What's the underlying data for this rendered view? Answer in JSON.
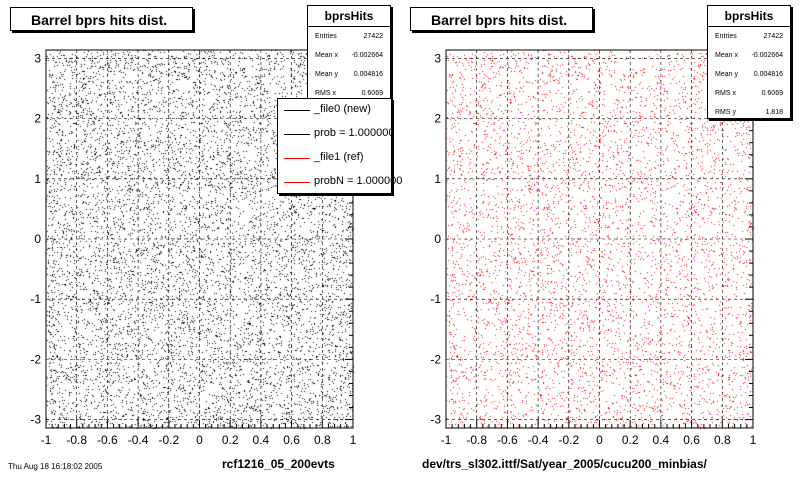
{
  "chart_data": [
    {
      "type": "scatter",
      "title": "Barrel bprs hits dist.",
      "xlim": [
        -1,
        1
      ],
      "ylim": [
        -3.14,
        3.14
      ],
      "x_ticks": [
        "-1",
        "-0.8",
        "-0.6",
        "-0.4",
        "-0.2",
        "0",
        "0.2",
        "0.4",
        "0.6",
        "0.8",
        "1"
      ],
      "y_ticks": [
        "-3",
        "-2",
        "-1",
        "0",
        "1",
        "2",
        "3"
      ],
      "grid": true,
      "point_color": "#000000",
      "distribution": "uniform",
      "stats": {
        "name": "bprsHits",
        "rows": [
          {
            "label": "Entries",
            "value": "27422"
          },
          {
            "label": "Mean x",
            "value": "-0.002664"
          },
          {
            "label": "Mean y",
            "value": "0.004816"
          },
          {
            "label": "RMS x",
            "value": "0.6069"
          }
        ]
      },
      "legend": {
        "placement": "top-right",
        "entries": [
          {
            "label": "_file0 (new)",
            "color": "#000000"
          },
          {
            "label": "prob = 1.000000",
            "color": "#000000"
          },
          {
            "label": "_file1 (ref)",
            "color": "#ff0000"
          },
          {
            "label": "probN = 1.000000",
            "color": "#ff0000"
          }
        ]
      },
      "caption": "rcf1216_05_200evts"
    },
    {
      "type": "scatter",
      "title": "Barrel bprs hits dist.",
      "xlim": [
        -1,
        1
      ],
      "ylim": [
        -3.14,
        3.14
      ],
      "x_ticks": [
        "-1",
        "-0.8",
        "-0.6",
        "-0.4",
        "-0.2",
        "0",
        "0.2",
        "0.4",
        "0.6",
        "0.8",
        "1"
      ],
      "y_ticks": [
        "-3",
        "-2",
        "-1",
        "0",
        "1",
        "2",
        "3"
      ],
      "grid": true,
      "point_color": "#ff0000",
      "distribution": "uniform",
      "stats": {
        "name": "bprsHits",
        "rows": [
          {
            "label": "Entries",
            "value": "27422"
          },
          {
            "label": "Mean x",
            "value": "-0.002664"
          },
          {
            "label": "Mean y",
            "value": "0.004816"
          },
          {
            "label": "RMS x",
            "value": "0.6069"
          },
          {
            "label": "RMS y",
            "value": "1.818"
          }
        ]
      },
      "caption": "dev/trs_sl302.ittf/Sat/year_2005/cucu200_minbias/"
    }
  ],
  "footer": {
    "stamp": "Thu Aug 18 16:18:02 2005"
  }
}
